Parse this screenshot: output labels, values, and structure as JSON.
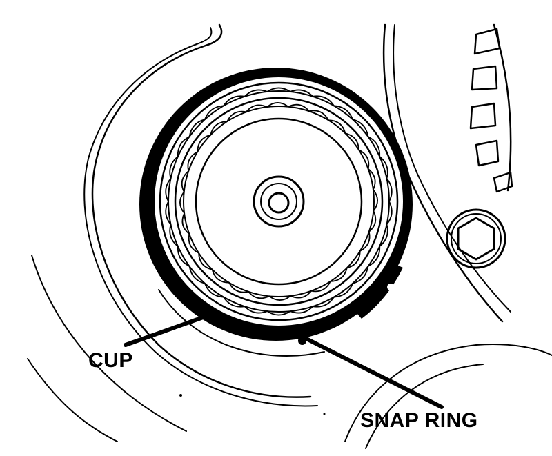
{
  "labels": {
    "cup": "CUP",
    "snap_ring": "SNAP RING"
  },
  "colors": {
    "ink": "#000000",
    "paper": "#ffffff"
  }
}
